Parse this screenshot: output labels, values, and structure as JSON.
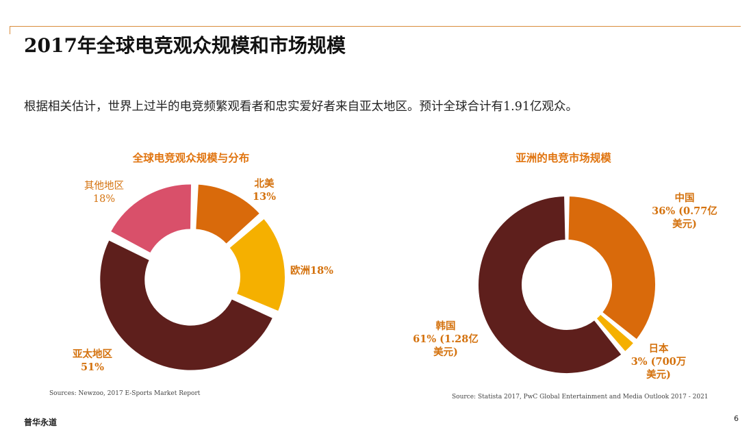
{
  "title": "2017年全球电竞观众规模和市场规模",
  "subtitle": "根据相关估计，世界上过半的电竞频繁观看者和忠实爱好者来自亚太地区。预计全球合计有1.91亿观众。",
  "chart_data": [
    {
      "type": "pie",
      "donut": true,
      "title": "全球电竞观众规模与分布",
      "categories": [
        "北美",
        "欧洲",
        "亚太地区",
        "其他地区"
      ],
      "values": [
        13,
        18,
        51,
        18
      ],
      "unit": "%",
      "colors": [
        "#d96a0b",
        "#f5b000",
        "#5e1f1c",
        "#d9506a"
      ],
      "labels": [
        {
          "lines": [
            "北美",
            "13%"
          ]
        },
        {
          "lines": [
            "欧洲18%"
          ]
        },
        {
          "lines": [
            "亚太地区",
            "51%"
          ]
        },
        {
          "lines": [
            "其他地区",
            "18%"
          ]
        }
      ],
      "source": "Sources: Newzoo, 2017 E-Sports Market Report"
    },
    {
      "type": "pie",
      "donut": true,
      "title": "亚洲的电竞市场规模",
      "categories": [
        "中国",
        "日本",
        "韩国"
      ],
      "values": [
        36,
        3,
        61
      ],
      "unit": "%",
      "colors": [
        "#d96a0b",
        "#f5b000",
        "#5e1f1c"
      ],
      "labels": [
        {
          "lines": [
            "中国",
            "36% (0.77亿",
            "美元)"
          ]
        },
        {
          "lines": [
            "日本",
            "3% (700万",
            "美元)"
          ]
        },
        {
          "lines": [
            "韩国",
            "61% (1.28亿",
            "美元)"
          ]
        }
      ],
      "source": "Source: Statista 2017, PwC Global Entertainment and Media Outlook 2017 - 2021"
    }
  ],
  "footer": {
    "brand": "普华永道",
    "page": "6"
  }
}
